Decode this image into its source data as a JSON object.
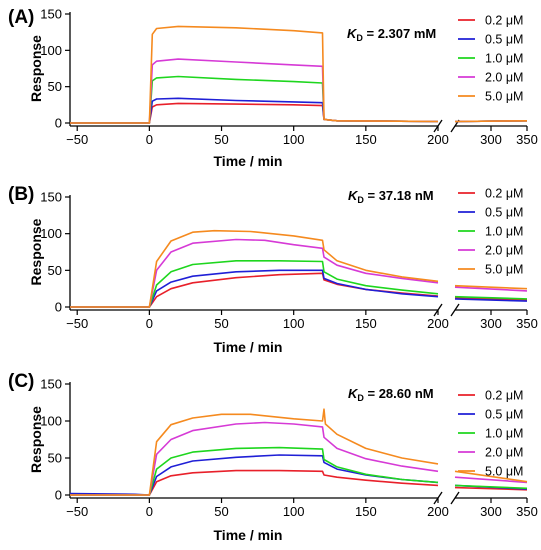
{
  "chart_data": [
    {
      "type": "line",
      "panel_label": "(A)",
      "kd_label": "K",
      "kd_sub": "D",
      "kd_value": " = 2.307 mM",
      "xlabel": "Time / min",
      "ylabel": "Response",
      "xticks": [
        "−50",
        "0",
        "50",
        "100",
        "150",
        "200",
        "300",
        "350"
      ],
      "yticks": [
        "0",
        "50",
        "100",
        "150"
      ],
      "ylim": [
        0,
        150
      ],
      "xlim_left": [
        -50,
        200
      ],
      "xlim_right": [
        250,
        350
      ],
      "axis_break": true,
      "legend_position": "right",
      "series": [
        {
          "name": "0.2 μM",
          "color": "#e8202a",
          "points": [
            [
              -55,
              0
            ],
            [
              0,
              0
            ],
            [
              2,
              22
            ],
            [
              5,
              25
            ],
            [
              20,
              27
            ],
            [
              60,
              26
            ],
            [
              100,
              25
            ],
            [
              120,
              24
            ],
            [
              121,
              5
            ],
            [
              130,
              3
            ],
            [
              200,
              2
            ],
            [
              250,
              2
            ],
            [
              350,
              3
            ]
          ]
        },
        {
          "name": "0.5 μM",
          "color": "#1f1fd6",
          "points": [
            [
              -55,
              0
            ],
            [
              0,
              0
            ],
            [
              2,
              30
            ],
            [
              5,
              33
            ],
            [
              20,
              34
            ],
            [
              60,
              31
            ],
            [
              100,
              29
            ],
            [
              120,
              28
            ],
            [
              121,
              5
            ],
            [
              130,
              3
            ],
            [
              200,
              2
            ],
            [
              250,
              2
            ],
            [
              350,
              3
            ]
          ]
        },
        {
          "name": "1.0 μM",
          "color": "#1ed61e",
          "points": [
            [
              -55,
              0
            ],
            [
              0,
              0
            ],
            [
              2,
              58
            ],
            [
              5,
              62
            ],
            [
              20,
              64
            ],
            [
              60,
              60
            ],
            [
              100,
              57
            ],
            [
              120,
              55
            ],
            [
              121,
              5
            ],
            [
              130,
              3
            ],
            [
              200,
              2
            ],
            [
              250,
              2
            ],
            [
              350,
              3
            ]
          ]
        },
        {
          "name": "2.0 μM",
          "color": "#d63ad6",
          "points": [
            [
              -55,
              0
            ],
            [
              0,
              0
            ],
            [
              2,
              80
            ],
            [
              5,
              85
            ],
            [
              20,
              88
            ],
            [
              60,
              84
            ],
            [
              100,
              80
            ],
            [
              120,
              78
            ],
            [
              121,
              5
            ],
            [
              130,
              3
            ],
            [
              200,
              2
            ],
            [
              250,
              2
            ],
            [
              350,
              3
            ]
          ]
        },
        {
          "name": "5.0 μM",
          "color": "#f58a1f",
          "points": [
            [
              -55,
              0
            ],
            [
              0,
              0
            ],
            [
              2,
              122
            ],
            [
              5,
              130
            ],
            [
              20,
              133
            ],
            [
              60,
              131
            ],
            [
              100,
              127
            ],
            [
              120,
              124
            ],
            [
              121,
              5
            ],
            [
              130,
              3
            ],
            [
              200,
              2
            ],
            [
              250,
              2
            ],
            [
              350,
              3
            ]
          ]
        }
      ]
    },
    {
      "type": "line",
      "panel_label": "(B)",
      "kd_label": "K",
      "kd_sub": "D",
      "kd_value": " = 37.18 nM",
      "xlabel": "Time / min",
      "ylabel": "Response",
      "xticks": [
        "−50",
        "0",
        "50",
        "100",
        "150",
        "200",
        "300",
        "350"
      ],
      "yticks": [
        "0",
        "50",
        "100",
        "150"
      ],
      "ylim": [
        0,
        150
      ],
      "xlim_left": [
        -50,
        200
      ],
      "xlim_right": [
        250,
        350
      ],
      "axis_break": true,
      "legend_position": "right",
      "series": [
        {
          "name": "0.2 μM",
          "color": "#e8202a",
          "points": [
            [
              -55,
              0
            ],
            [
              0,
              0
            ],
            [
              5,
              14
            ],
            [
              15,
              25
            ],
            [
              30,
              33
            ],
            [
              60,
              40
            ],
            [
              90,
              44
            ],
            [
              120,
              46
            ],
            [
              121,
              37
            ],
            [
              130,
              31
            ],
            [
              150,
              24
            ],
            [
              175,
              19
            ],
            [
              200,
              15
            ],
            [
              250,
              12
            ],
            [
              350,
              10
            ]
          ]
        },
        {
          "name": "0.5 μM",
          "color": "#1f1fd6",
          "points": [
            [
              -55,
              0
            ],
            [
              0,
              0
            ],
            [
              5,
              22
            ],
            [
              15,
              34
            ],
            [
              30,
              42
            ],
            [
              60,
              48
            ],
            [
              90,
              50
            ],
            [
              120,
              50
            ],
            [
              121,
              39
            ],
            [
              130,
              32
            ],
            [
              150,
              24
            ],
            [
              175,
              18
            ],
            [
              200,
              14
            ],
            [
              250,
              11
            ],
            [
              350,
              8
            ]
          ]
        },
        {
          "name": "1.0 μM",
          "color": "#1ed61e",
          "points": [
            [
              -55,
              0
            ],
            [
              0,
              0
            ],
            [
              5,
              30
            ],
            [
              15,
              48
            ],
            [
              30,
              58
            ],
            [
              60,
              63
            ],
            [
              90,
              63
            ],
            [
              120,
              62
            ],
            [
              121,
              48
            ],
            [
              130,
              38
            ],
            [
              150,
              29
            ],
            [
              175,
              23
            ],
            [
              200,
              18
            ],
            [
              250,
              14
            ],
            [
              350,
              11
            ]
          ]
        },
        {
          "name": "2.0 μM",
          "color": "#d63ad6",
          "points": [
            [
              -55,
              0
            ],
            [
              0,
              0
            ],
            [
              5,
              50
            ],
            [
              15,
              75
            ],
            [
              30,
              87
            ],
            [
              60,
              92
            ],
            [
              80,
              91
            ],
            [
              100,
              85
            ],
            [
              120,
              80
            ],
            [
              121,
              68
            ],
            [
              130,
              57
            ],
            [
              150,
              46
            ],
            [
              175,
              39
            ],
            [
              200,
              33
            ],
            [
              250,
              27
            ],
            [
              350,
              22
            ]
          ]
        },
        {
          "name": "5.0 μM",
          "color": "#f58a1f",
          "points": [
            [
              -55,
              0
            ],
            [
              0,
              0
            ],
            [
              5,
              62
            ],
            [
              15,
              90
            ],
            [
              30,
              102
            ],
            [
              45,
              104
            ],
            [
              70,
              103
            ],
            [
              100,
              97
            ],
            [
              120,
              91
            ],
            [
              121,
              78
            ],
            [
              130,
              63
            ],
            [
              150,
              50
            ],
            [
              175,
              41
            ],
            [
              200,
              35
            ],
            [
              250,
              29
            ],
            [
              350,
              25
            ]
          ]
        }
      ]
    },
    {
      "type": "line",
      "panel_label": "(C)",
      "kd_label": "K",
      "kd_sub": "D",
      "kd_value": " = 28.60 nM",
      "xlabel": "Time / min",
      "ylabel": "Response",
      "xticks": [
        "−50",
        "0",
        "50",
        "100",
        "150",
        "200",
        "300",
        "350"
      ],
      "yticks": [
        "0",
        "50",
        "100",
        "150"
      ],
      "ylim": [
        0,
        150
      ],
      "xlim_left": [
        -50,
        200
      ],
      "xlim_right": [
        250,
        350
      ],
      "axis_break": true,
      "legend_position": "right",
      "series": [
        {
          "name": "0.2 μM",
          "color": "#e8202a",
          "points": [
            [
              -55,
              0
            ],
            [
              0,
              0
            ],
            [
              5,
              18
            ],
            [
              15,
              26
            ],
            [
              30,
              30
            ],
            [
              60,
              33
            ],
            [
              90,
              33
            ],
            [
              120,
              32
            ],
            [
              121,
              27
            ],
            [
              130,
              24
            ],
            [
              150,
              20
            ],
            [
              175,
              16
            ],
            [
              200,
              13
            ],
            [
              250,
              10
            ],
            [
              350,
              7
            ]
          ]
        },
        {
          "name": "0.5 μM",
          "color": "#1f1fd6",
          "points": [
            [
              -55,
              2
            ],
            [
              -10,
              1
            ],
            [
              0,
              0
            ],
            [
              5,
              25
            ],
            [
              15,
              38
            ],
            [
              30,
              46
            ],
            [
              60,
              51
            ],
            [
              90,
              54
            ],
            [
              120,
              53
            ],
            [
              121,
              44
            ],
            [
              130,
              35
            ],
            [
              150,
              27
            ],
            [
              175,
              21
            ],
            [
              200,
              17
            ],
            [
              250,
              13
            ],
            [
              350,
              8
            ]
          ]
        },
        {
          "name": "1.0 μM",
          "color": "#1ed61e",
          "points": [
            [
              -55,
              0
            ],
            [
              0,
              0
            ],
            [
              5,
              35
            ],
            [
              15,
              50
            ],
            [
              30,
              58
            ],
            [
              60,
              63
            ],
            [
              90,
              64
            ],
            [
              120,
              62
            ],
            [
              121,
              48
            ],
            [
              130,
              38
            ],
            [
              150,
              28
            ],
            [
              175,
              21
            ],
            [
              200,
              17
            ],
            [
              250,
              13
            ],
            [
              350,
              9
            ]
          ]
        },
        {
          "name": "2.0 μM",
          "color": "#d63ad6",
          "points": [
            [
              -55,
              0
            ],
            [
              0,
              0
            ],
            [
              5,
              55
            ],
            [
              15,
              75
            ],
            [
              30,
              87
            ],
            [
              60,
              96
            ],
            [
              80,
              98
            ],
            [
              100,
              96
            ],
            [
              120,
              92
            ],
            [
              121,
              78
            ],
            [
              130,
              63
            ],
            [
              150,
              49
            ],
            [
              175,
              39
            ],
            [
              200,
              32
            ],
            [
              250,
              24
            ],
            [
              350,
              17
            ]
          ]
        },
        {
          "name": "5.0 μM",
          "color": "#f58a1f",
          "points": [
            [
              -55,
              0
            ],
            [
              0,
              0
            ],
            [
              5,
              72
            ],
            [
              15,
              95
            ],
            [
              30,
              104
            ],
            [
              50,
              109
            ],
            [
              70,
              109
            ],
            [
              100,
              103
            ],
            [
              120,
              100
            ],
            [
              121,
              116
            ],
            [
              122,
              96
            ],
            [
              130,
              82
            ],
            [
              150,
              63
            ],
            [
              175,
              50
            ],
            [
              200,
              42
            ],
            [
              250,
              32
            ],
            [
              350,
              18
            ]
          ]
        }
      ]
    }
  ]
}
